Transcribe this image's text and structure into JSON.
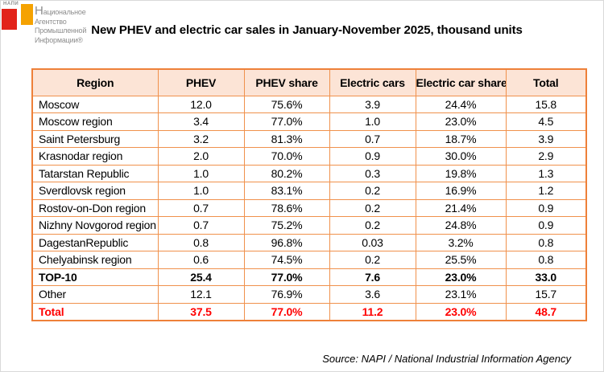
{
  "logo": {
    "mini_text": "НАПИ",
    "lines": [
      "Национальное",
      "Агентство",
      "Промышленной",
      "Информации®"
    ]
  },
  "title": "New PHEV and electric car sales in January-November 2025, thousand units",
  "source": "Source: NAPI / National Industrial Information Agency",
  "colors": {
    "table_border": "#F0914C",
    "table_outer_border": "#EE8039",
    "header_bg": "#FCE4D6",
    "total_row_text": "#FF0000",
    "logo_red_square": "#E2231A",
    "logo_orange_square": "#F5A201",
    "logo_text_gray": "#8D8D8D"
  },
  "chart_data": {
    "type": "table",
    "title": "New PHEV and electric car sales in January-November 2025, thousand units",
    "headers": [
      "Region",
      "PHEV",
      "PHEV share",
      "Electric cars",
      "Electric car share",
      "Total"
    ],
    "columns": [
      "region",
      "phev",
      "phev_share",
      "ev",
      "ev_share",
      "total"
    ],
    "rows": [
      {
        "region": "Moscow",
        "phev": "12.0",
        "phev_share": "75.6%",
        "ev": "3.9",
        "ev_share": "24.4%",
        "total": "15.8",
        "style": "normal"
      },
      {
        "region": "Moscow region",
        "phev": "3.4",
        "phev_share": "77.0%",
        "ev": "1.0",
        "ev_share": "23.0%",
        "total": "4.5",
        "style": "normal"
      },
      {
        "region": "Saint Petersburg",
        "phev": "3.2",
        "phev_share": "81.3%",
        "ev": "0.7",
        "ev_share": "18.7%",
        "total": "3.9",
        "style": "normal"
      },
      {
        "region": "Krasnodar region",
        "phev": "2.0",
        "phev_share": "70.0%",
        "ev": "0.9",
        "ev_share": "30.0%",
        "total": "2.9",
        "style": "normal"
      },
      {
        "region": "Tatarstan Republic",
        "phev": "1.0",
        "phev_share": "80.2%",
        "ev": "0.3",
        "ev_share": "19.8%",
        "total": "1.3",
        "style": "normal"
      },
      {
        "region": "Sverdlovsk region",
        "phev": "1.0",
        "phev_share": "83.1%",
        "ev": "0.2",
        "ev_share": "16.9%",
        "total": "1.2",
        "style": "normal"
      },
      {
        "region": "Rostov-on-Don region",
        "phev": "0.7",
        "phev_share": "78.6%",
        "ev": "0.2",
        "ev_share": "21.4%",
        "total": "0.9",
        "style": "normal"
      },
      {
        "region": "Nizhny Novgorod region",
        "phev": "0.7",
        "phev_share": "75.2%",
        "ev": "0.2",
        "ev_share": "24.8%",
        "total": "0.9",
        "style": "normal"
      },
      {
        "region": "DagestanRepublic",
        "phev": "0.8",
        "phev_share": "96.8%",
        "ev": "0.03",
        "ev_share": "3.2%",
        "total": "0.8",
        "style": "normal"
      },
      {
        "region": "Chelyabinsk region",
        "phev": "0.6",
        "phev_share": "74.5%",
        "ev": "0.2",
        "ev_share": "25.5%",
        "total": "0.8",
        "style": "normal"
      },
      {
        "region": "TOP-10",
        "phev": "25.4",
        "phev_share": "77.0%",
        "ev": "7.6",
        "ev_share": "23.0%",
        "total": "33.0",
        "style": "bold"
      },
      {
        "region": "Other",
        "phev": "12.1",
        "phev_share": "76.9%",
        "ev": "3.6",
        "ev_share": "23.1%",
        "total": "15.7",
        "style": "normal"
      },
      {
        "region": "Total",
        "phev": "37.5",
        "phev_share": "77.0%",
        "ev": "11.2",
        "ev_share": "23.0%",
        "total": "48.7",
        "style": "total"
      }
    ],
    "layout": {
      "grid": "full-borders",
      "header_background": "#FCE4D6",
      "units": "thousand units"
    }
  }
}
